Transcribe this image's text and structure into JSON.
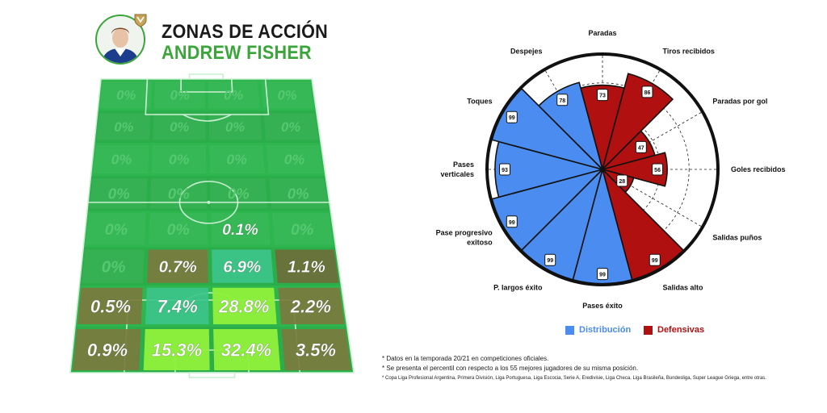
{
  "header": {
    "title": "ZONAS DE ACCIÓN",
    "player_name": "ANDREW FISHER",
    "avatar_icon": "player-avatar-icon",
    "badge_icon": "club-crest-icon"
  },
  "chart_data": [
    {
      "type": "heatmap",
      "rows": 8,
      "cols": 4,
      "values": [
        [
          "0%",
          "0%",
          "0%",
          "0%"
        ],
        [
          "0%",
          "0%",
          "0%",
          "0%"
        ],
        [
          "0%",
          "0%",
          "0%",
          "0%"
        ],
        [
          "0%",
          "0%",
          "0%",
          "0%"
        ],
        [
          "0%",
          "0%",
          "0.1%",
          "0%"
        ],
        [
          "0%",
          "0.7%",
          "6.9%",
          "1.1%"
        ],
        [
          "0.5%",
          "7.4%",
          "28.8%",
          "2.2%"
        ],
        [
          "0.9%",
          "15.3%",
          "32.4%",
          "3.5%"
        ]
      ],
      "colors": {
        "pitch": "#2db54e",
        "stripe_dark": "#2aa847",
        "line": "#c9efd1",
        "zero_text": "#55c870",
        "olive": "#7a7a3e",
        "dark_olive": "#6e6e3a",
        "teal": "#3cc48a",
        "bright": "#8ef03c",
        "brightest": "#9bf540"
      },
      "cell_styles": [
        [
          "empty",
          "empty",
          "empty",
          "empty"
        ],
        [
          "empty",
          "empty",
          "empty",
          "empty"
        ],
        [
          "empty",
          "empty",
          "empty",
          "empty"
        ],
        [
          "empty",
          "empty",
          "empty",
          "empty"
        ],
        [
          "empty",
          "empty",
          "faint",
          "empty"
        ],
        [
          "empty",
          "olive",
          "teal",
          "dark_olive"
        ],
        [
          "olive",
          "teal",
          "bright",
          "olive"
        ],
        [
          "olive",
          "bright",
          "bright",
          "olive"
        ]
      ]
    },
    {
      "type": "polar_bar",
      "scale": [
        0,
        100
      ],
      "series": [
        {
          "name": "Distribución",
          "color": "#4a8cf0"
        },
        {
          "name": "Defensivas",
          "color": "#b01010"
        }
      ],
      "categories": [
        {
          "label": "Paradas",
          "value": 73,
          "series": "Defensivas"
        },
        {
          "label": "Tiros recibidos",
          "value": 86,
          "series": "Defensivas"
        },
        {
          "label": "Paradas por gol",
          "value": 47,
          "series": "Defensivas"
        },
        {
          "label": "Goles recibidos",
          "value": 56,
          "series": "Defensivas"
        },
        {
          "label": "Salidas puños",
          "value": 28,
          "series": "Defensivas"
        },
        {
          "label": "Salidas alto",
          "value": 99,
          "series": "Defensivas"
        },
        {
          "label": "Pases éxito",
          "value": 99,
          "series": "Distribución"
        },
        {
          "label": "P. largos éxito",
          "value": 99,
          "series": "Distribución"
        },
        {
          "label": "Pase progresivo exitoso",
          "value": 99,
          "series": "Distribución"
        },
        {
          "label": "Pases verticales",
          "value": 93,
          "series": "Distribución"
        },
        {
          "label": "Toques",
          "value": 99,
          "series": "Distribución"
        },
        {
          "label": "Despejes",
          "value": 78,
          "series": "Distribución"
        }
      ]
    }
  ],
  "legend": {
    "distribucion": "Distribución",
    "defensivas": "Defensivas"
  },
  "notes": [
    "* Datos en la temporada 20/21 en competiciones oficiales.",
    "* Se presenta el percentil con respecto a los 55 mejores jugadores de su misma posición.",
    "* Copa Liga Profesional Argentina, Primera División, Liga Portuguesa, Liga Escocia, Serie A, Eredivisie, Liga Checa, Liga Brasileña, Bundesliga, Super League Griega, entre otras."
  ]
}
